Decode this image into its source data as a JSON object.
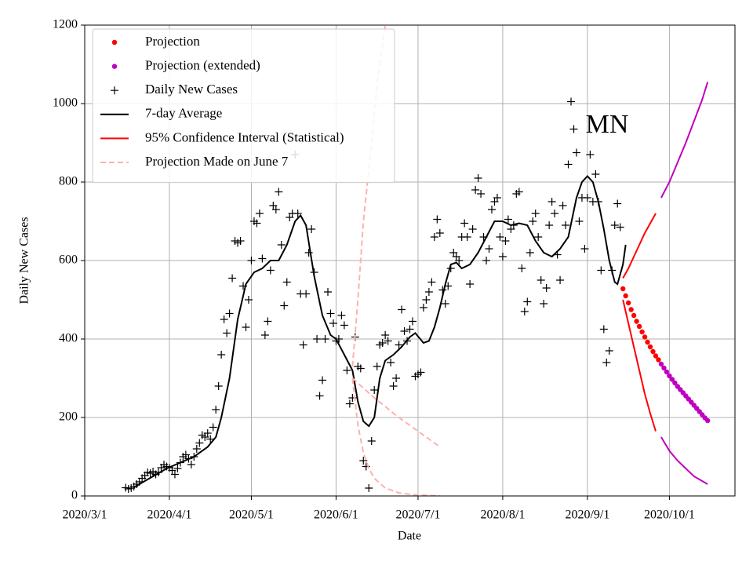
{
  "chart_data": {
    "type": "line",
    "annotation": "MN",
    "xlabel": "Date",
    "ylabel": "Daily New Cases",
    "xlim": [
      "2020/3/1",
      "2020/10/25"
    ],
    "xticks": [
      "2020/3/1",
      "2020/4/1",
      "2020/5/1",
      "2020/6/1",
      "2020/7/1",
      "2020/8/1",
      "2020/9/1",
      "2020/10/1"
    ],
    "ylim": [
      0,
      1200
    ],
    "yticks": [
      0,
      200,
      400,
      600,
      800,
      1000,
      1200
    ],
    "grid": true,
    "legend": "upper left",
    "series": [
      {
        "name": "Projection",
        "color": "#ff0000",
        "style": "dot",
        "x": [
          "2020/9/14",
          "2020/9/15",
          "2020/9/16",
          "2020/9/17",
          "2020/9/18",
          "2020/9/19",
          "2020/9/20",
          "2020/9/21",
          "2020/9/22",
          "2020/9/23",
          "2020/9/24",
          "2020/9/25",
          "2020/9/26",
          "2020/9/27"
        ],
        "values": [
          528,
          510,
          492,
          475,
          460,
          445,
          432,
          418,
          405,
          392,
          380,
          368,
          357,
          347
        ]
      },
      {
        "name": "Projection (extended)",
        "color": "#bf00bf",
        "style": "dot",
        "x": [
          "2020/9/28",
          "2020/9/29",
          "2020/9/30",
          "2020/10/1",
          "2020/10/2",
          "2020/10/3",
          "2020/10/4",
          "2020/10/5",
          "2020/10/6",
          "2020/10/7",
          "2020/10/8",
          "2020/10/9",
          "2020/10/10",
          "2020/10/11",
          "2020/10/12",
          "2020/10/13",
          "2020/10/14",
          "2020/10/15"
        ],
        "values": [
          336,
          326,
          316,
          306,
          297,
          288,
          279,
          271,
          263,
          255,
          247,
          239,
          231,
          223,
          215,
          207,
          199,
          192
        ]
      },
      {
        "name": "Daily New Cases",
        "color": "#000000",
        "style": "plus",
        "x": [
          "2020/3/16",
          "2020/3/17",
          "2020/3/18",
          "2020/3/19",
          "2020/3/20",
          "2020/3/21",
          "2020/3/22",
          "2020/3/23",
          "2020/3/24",
          "2020/3/25",
          "2020/3/26",
          "2020/3/27",
          "2020/3/28",
          "2020/3/29",
          "2020/3/30",
          "2020/3/31",
          "2020/4/1",
          "2020/4/2",
          "2020/4/3",
          "2020/4/4",
          "2020/4/5",
          "2020/4/6",
          "2020/4/7",
          "2020/4/8",
          "2020/4/9",
          "2020/4/10",
          "2020/4/11",
          "2020/4/12",
          "2020/4/13",
          "2020/4/14",
          "2020/4/15",
          "2020/4/16",
          "2020/4/17",
          "2020/4/18",
          "2020/4/19",
          "2020/4/20",
          "2020/4/21",
          "2020/4/22",
          "2020/4/23",
          "2020/4/24",
          "2020/4/25",
          "2020/4/26",
          "2020/4/27",
          "2020/4/28",
          "2020/4/29",
          "2020/4/30",
          "2020/5/1",
          "2020/5/2",
          "2020/5/3",
          "2020/5/4",
          "2020/5/5",
          "2020/5/6",
          "2020/5/7",
          "2020/5/8",
          "2020/5/9",
          "2020/5/10",
          "2020/5/11",
          "2020/5/12",
          "2020/5/13",
          "2020/5/14",
          "2020/5/15",
          "2020/5/16",
          "2020/5/17",
          "2020/5/18",
          "2020/5/19",
          "2020/5/20",
          "2020/5/21",
          "2020/5/22",
          "2020/5/23",
          "2020/5/24",
          "2020/5/25",
          "2020/5/26",
          "2020/5/27",
          "2020/5/28",
          "2020/5/29",
          "2020/5/30",
          "2020/5/31",
          "2020/6/1",
          "2020/6/2",
          "2020/6/3",
          "2020/6/4",
          "2020/6/5",
          "2020/6/6",
          "2020/6/7",
          "2020/6/8",
          "2020/6/9",
          "2020/6/10",
          "2020/6/11",
          "2020/6/12",
          "2020/6/13",
          "2020/6/14",
          "2020/6/15",
          "2020/6/16",
          "2020/6/17",
          "2020/6/18",
          "2020/6/19",
          "2020/6/20",
          "2020/6/21",
          "2020/6/22",
          "2020/6/23",
          "2020/6/24",
          "2020/6/25",
          "2020/6/26",
          "2020/6/27",
          "2020/6/28",
          "2020/6/29",
          "2020/6/30",
          "2020/7/1",
          "2020/7/2",
          "2020/7/3",
          "2020/7/4",
          "2020/7/5",
          "2020/7/6",
          "2020/7/7",
          "2020/7/8",
          "2020/7/9",
          "2020/7/10",
          "2020/7/11",
          "2020/7/12",
          "2020/7/13",
          "2020/7/14",
          "2020/7/15",
          "2020/7/16",
          "2020/7/17",
          "2020/7/18",
          "2020/7/19",
          "2020/7/20",
          "2020/7/21",
          "2020/7/22",
          "2020/7/23",
          "2020/7/24",
          "2020/7/25",
          "2020/7/26",
          "2020/7/27",
          "2020/7/28",
          "2020/7/29",
          "2020/7/30",
          "2020/7/31",
          "2020/8/1",
          "2020/8/2",
          "2020/8/3",
          "2020/8/4",
          "2020/8/5",
          "2020/8/6",
          "2020/8/7",
          "2020/8/8",
          "2020/8/9",
          "2020/8/10",
          "2020/8/11",
          "2020/8/12",
          "2020/8/13",
          "2020/8/14",
          "2020/8/15",
          "2020/8/16",
          "2020/8/17",
          "2020/8/18",
          "2020/8/19",
          "2020/8/20",
          "2020/8/21",
          "2020/8/22",
          "2020/8/23",
          "2020/8/24",
          "2020/8/25",
          "2020/8/26",
          "2020/8/27",
          "2020/8/28",
          "2020/8/29",
          "2020/8/30",
          "2020/8/31",
          "2020/9/1",
          "2020/9/2",
          "2020/9/3",
          "2020/9/4",
          "2020/9/5",
          "2020/9/6",
          "2020/9/7",
          "2020/9/8",
          "2020/9/9",
          "2020/9/10",
          "2020/9/11",
          "2020/9/12",
          "2020/9/13"
        ],
        "values": [
          21,
          18,
          20,
          24,
          30,
          36,
          45,
          52,
          60,
          58,
          62,
          55,
          60,
          72,
          80,
          75,
          72,
          65,
          55,
          70,
          85,
          100,
          105,
          95,
          80,
          100,
          120,
          135,
          155,
          150,
          160,
          145,
          175,
          220,
          280,
          360,
          450,
          415,
          465,
          555,
          650,
          645,
          650,
          535,
          430,
          500,
          600,
          700,
          695,
          720,
          605,
          410,
          445,
          575,
          740,
          730,
          775,
          640,
          485,
          545,
          710,
          720,
          870,
          720,
          515,
          385,
          515,
          620,
          680,
          570,
          400,
          255,
          295,
          400,
          520,
          465,
          440,
          395,
          400,
          460,
          435,
          320,
          235,
          250,
          405,
          330,
          325,
          90,
          75,
          20,
          140,
          270,
          330,
          385,
          390,
          410,
          395,
          340,
          280,
          300,
          385,
          475,
          420,
          395,
          425,
          445,
          305,
          310,
          315,
          480,
          500,
          520,
          545,
          660,
          705,
          670,
          525,
          490,
          535,
          580,
          620,
          610,
          600,
          660,
          695,
          660,
          540,
          680,
          780,
          810,
          770,
          660,
          600,
          630,
          730,
          750,
          760,
          660,
          610,
          650,
          705,
          680,
          690,
          770,
          775,
          580,
          470,
          495,
          620,
          700,
          720,
          660,
          550,
          490,
          530,
          690,
          750,
          720,
          615,
          550,
          740,
          690,
          845,
          1005,
          935,
          875,
          700,
          760,
          630,
          760,
          870,
          750,
          820,
          750,
          575,
          425,
          340,
          370,
          575,
          690,
          745,
          685
        ]
      },
      {
        "name": "7-day Average",
        "color": "#000000",
        "style": "line",
        "x": [
          "2020/3/19",
          "2020/3/26",
          "2020/3/31",
          "2020/4/5",
          "2020/4/10",
          "2020/4/15",
          "2020/4/18",
          "2020/4/20",
          "2020/4/23",
          "2020/4/26",
          "2020/4/29",
          "2020/5/2",
          "2020/5/5",
          "2020/5/8",
          "2020/5/11",
          "2020/5/14",
          "2020/5/17",
          "2020/5/19",
          "2020/5/21",
          "2020/5/24",
          "2020/5/27",
          "2020/5/30",
          "2020/6/1",
          "2020/6/4",
          "2020/6/7",
          "2020/6/9",
          "2020/6/11",
          "2020/6/13",
          "2020/6/15",
          "2020/6/17",
          "2020/6/19",
          "2020/6/22",
          "2020/6/25",
          "2020/6/28",
          "2020/6/30",
          "2020/7/3",
          "2020/7/5",
          "2020/7/7",
          "2020/7/9",
          "2020/7/11",
          "2020/7/13",
          "2020/7/15",
          "2020/7/17",
          "2020/7/20",
          "2020/7/23",
          "2020/7/26",
          "2020/7/29",
          "2020/8/1",
          "2020/8/4",
          "2020/8/7",
          "2020/8/10",
          "2020/8/13",
          "2020/8/16",
          "2020/8/19",
          "2020/8/22",
          "2020/8/25",
          "2020/8/28",
          "2020/8/30",
          "2020/9/1",
          "2020/9/3",
          "2020/9/5",
          "2020/9/7",
          "2020/9/9",
          "2020/9/11",
          "2020/9/12",
          "2020/9/14",
          "2020/9/15"
        ],
        "values": [
          22,
          50,
          70,
          85,
          100,
          125,
          150,
          200,
          300,
          450,
          540,
          570,
          580,
          600,
          600,
          640,
          700,
          715,
          690,
          560,
          460,
          410,
          400,
          360,
          320,
          240,
          190,
          178,
          200,
          300,
          345,
          360,
          380,
          405,
          415,
          390,
          395,
          430,
          480,
          540,
          590,
          595,
          580,
          590,
          620,
          660,
          700,
          700,
          690,
          695,
          690,
          650,
          620,
          610,
          630,
          660,
          760,
          800,
          815,
          800,
          750,
          680,
          600,
          545,
          540,
          590,
          640
        ]
      },
      {
        "name": "95% Confidence Interval (Statistical)",
        "color": "#ff0000",
        "style": "line",
        "x": [
          "2020/9/14",
          "2020/9/16",
          "2020/9/18",
          "2020/9/20",
          "2020/9/22",
          "2020/9/24",
          "2020/9/26"
        ],
        "values": [
          555,
          580,
          610,
          640,
          670,
          695,
          720
        ]
      },
      {
        "name": "Projection Made on June 7",
        "color": "#ffb0b0",
        "style": "dash",
        "x": [
          "2020/6/7",
          "2020/6/11",
          "2020/6/15",
          "2020/6/19",
          "2020/6/23",
          "2020/6/27",
          "2020/7/1",
          "2020/7/5",
          "2020/7/9"
        ],
        "values": [
          300,
          275,
          250,
          228,
          205,
          185,
          165,
          145,
          125
        ]
      },
      {
        "color": "#ff0000",
        "style": "line",
        "x": [
          "2020/9/14",
          "2020/9/16",
          "2020/9/18",
          "2020/9/20",
          "2020/9/22",
          "2020/9/24",
          "2020/9/26"
        ],
        "values": [
          500,
          440,
          380,
          320,
          260,
          210,
          165
        ]
      },
      {
        "color": "#bf00bf",
        "style": "line",
        "x": [
          "2020/9/28",
          "2020/10/1",
          "2020/10/4",
          "2020/10/7",
          "2020/10/10",
          "2020/10/13",
          "2020/10/15"
        ],
        "values": [
          760,
          800,
          850,
          900,
          955,
          1010,
          1055
        ]
      },
      {
        "color": "#bf00bf",
        "style": "line",
        "x": [
          "2020/9/28",
          "2020/10/1",
          "2020/10/4",
          "2020/10/7",
          "2020/10/10",
          "2020/10/13",
          "2020/10/15"
        ],
        "values": [
          150,
          115,
          90,
          70,
          50,
          38,
          30
        ]
      },
      {
        "color": "#ffb0b0",
        "style": "dash",
        "x": [
          "2020/6/7",
          "2020/6/9",
          "2020/6/11",
          "2020/6/14",
          "2020/6/16",
          "2020/6/19"
        ],
        "values": [
          330,
          500,
          700,
          900,
          1050,
          1200
        ]
      },
      {
        "color": "#ffb0b0",
        "style": "dash",
        "x": [
          "2020/6/7",
          "2020/6/9",
          "2020/6/11",
          "2020/6/13",
          "2020/6/15",
          "2020/6/19",
          "2020/6/24",
          "2020/6/29",
          "2020/7/9"
        ],
        "values": [
          300,
          180,
          110,
          70,
          45,
          20,
          8,
          3,
          0
        ]
      }
    ]
  }
}
